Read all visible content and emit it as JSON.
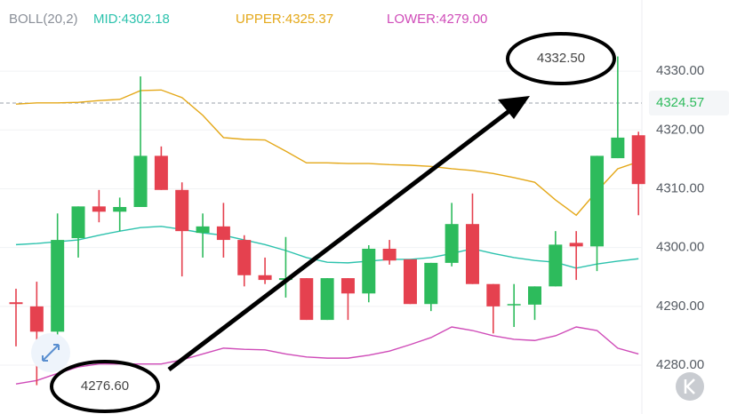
{
  "chart_data": {
    "type": "candlestick",
    "indicator": "BOLL(20,2)",
    "up_color": "#2dbb5c",
    "down_color": "#e5414f",
    "ylim": [
      4271.7,
      4342.1
    ],
    "yticks": [
      {
        "value": 4330,
        "label": "4330.00"
      },
      {
        "value": 4320,
        "label": "4320.00"
      },
      {
        "value": 4310,
        "label": "4310.00"
      },
      {
        "value": 4300,
        "label": "4300.00"
      },
      {
        "value": 4290,
        "label": "4290.00"
      },
      {
        "value": 4280,
        "label": "4280.00"
      }
    ],
    "grid": true,
    "last_price": 4324.57,
    "open": [
      4290.7,
      4290.0,
      4285.7,
      4301.6,
      4307.0,
      4306.1,
      4306.9,
      4315.6,
      4309.8,
      4302.5,
      4303.6,
      4301.3,
      4295.3,
      4294.5,
      4294.8,
      4287.7,
      4294.8,
      4292.2,
      4299.8,
      4298.0,
      4290.4,
      4297.4,
      4304.0,
      4293.8,
      4290.3,
      4290.3,
      4293.4,
      4300.8,
      4300.2,
      4315.2,
      4319.1
    ],
    "high": [
      4293.0,
      4294.2,
      4305.8,
      4307.0,
      4309.8,
      4308.5,
      4329.1,
      4317.2,
      4311.1,
      4305.8,
      4307.6,
      4302.1,
      4298.3,
      4301.8,
      4294.8,
      4294.8,
      4294.8,
      4300.4,
      4301.3,
      4298.0,
      4297.4,
      4307.6,
      4309.2,
      4293.8,
      4293.8,
      4293.4,
      4302.8,
      4302.8,
      4315.6,
      4332.5,
      4319.7
    ],
    "low": [
      4283.2,
      4276.6,
      4284.4,
      4298.3,
      4304.3,
      4302.8,
      4306.9,
      4309.8,
      4295.1,
      4298.3,
      4298.3,
      4293.4,
      4293.8,
      4291.5,
      4287.7,
      4287.7,
      4287.7,
      4290.7,
      4297.1,
      4290.4,
      4289.2,
      4296.8,
      4293.8,
      4285.4,
      4286.5,
      4287.7,
      4293.4,
      4294.5,
      4296.0,
      4315.2,
      4305.5
    ],
    "close": [
      4290.4,
      4285.7,
      4301.3,
      4307.0,
      4306.1,
      4306.9,
      4315.6,
      4309.8,
      4302.8,
      4303.6,
      4301.3,
      4295.3,
      4294.5,
      4294.8,
      4287.7,
      4294.8,
      4292.2,
      4299.8,
      4297.8,
      4290.4,
      4297.4,
      4304.0,
      4293.8,
      4290.0,
      4290.4,
      4293.4,
      4300.5,
      4300.2,
      4315.6,
      4318.7,
      4310.8
    ],
    "series": [
      {
        "name": "MID",
        "legend_label": "MID:4302.18",
        "color": "#2cc2ad",
        "values": [
          4300.5,
          4300.7,
          4301.0,
          4301.3,
          4302.1,
          4302.8,
          4303.4,
          4303.6,
          4303.1,
          4302.5,
          4302.1,
          4301.3,
          4300.5,
          4299.5,
          4298.3,
          4297.5,
          4297.4,
          4297.7,
          4298.0,
          4298.0,
          4298.3,
          4299.0,
          4299.8,
          4299.0,
          4298.3,
          4297.8,
          4297.5,
          4296.5,
          4297.2,
          4297.7,
          4298.1
        ]
      },
      {
        "name": "UPPER",
        "legend_label": "UPPER:4325.37",
        "color": "#e4a819",
        "values": [
          4324.4,
          4324.6,
          4324.6,
          4324.7,
          4325.0,
          4325.2,
          4326.7,
          4326.8,
          4325.5,
          4322.5,
          4318.7,
          4318.4,
          4318.3,
          4316.4,
          4314.4,
          4314.4,
          4314.3,
          4314.3,
          4314.1,
          4314.0,
          4313.8,
          4313.4,
          4313.1,
          4312.6,
          4311.9,
          4311.1,
          4308.1,
          4305.5,
          4309.6,
          4313.4,
          4314.6
        ]
      },
      {
        "name": "LOWER",
        "legend_label": "LOWER:4279.00",
        "color": "#cf4bb8",
        "values": [
          4276.8,
          4277.4,
          4278.6,
          4279.7,
          4280.2,
          4280.2,
          4280.2,
          4280.2,
          4280.9,
          4281.9,
          4282.9,
          4282.7,
          4282.6,
          4281.9,
          4281.4,
          4281.2,
          4281.2,
          4281.7,
          4282.4,
          4283.5,
          4284.7,
          4286.5,
          4285.9,
          4285.0,
          4284.4,
          4284.2,
          4285.0,
          4286.5,
          4285.9,
          4282.9,
          4281.9
        ]
      }
    ],
    "annotations": [
      {
        "value": 4332.5,
        "label": "4332.50"
      },
      {
        "value": 4276.6,
        "label": "4276.60"
      }
    ]
  }
}
